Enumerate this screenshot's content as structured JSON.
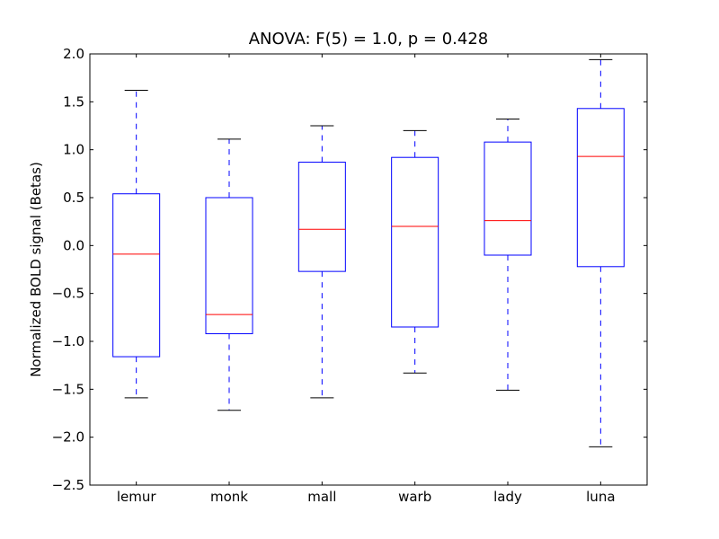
{
  "chart_data": {
    "type": "boxplot",
    "title": "ANOVA: F(5) = 1.0, p = 0.428",
    "xlabel": "",
    "ylabel": "Normalized BOLD signal (Betas)",
    "ylim": [
      -2.5,
      2.0
    ],
    "yticks": [
      "2.0",
      "1.5",
      "1.0",
      "0.5",
      "0.0",
      "−0.5",
      "−1.0",
      "−1.5",
      "−2.0",
      "−2.5"
    ],
    "ytick_values": [
      2.0,
      1.5,
      1.0,
      0.5,
      0.0,
      -0.5,
      -1.0,
      -1.5,
      -2.0,
      -2.5
    ],
    "grid": false,
    "colors": {
      "box": "#0000ff",
      "median": "#ff0000",
      "whisker": "#0000ff",
      "cap": "#000000"
    },
    "categories": [
      "lemur",
      "monk",
      "mall",
      "warb",
      "lady",
      "luna"
    ],
    "boxes": [
      {
        "label": "lemur",
        "whisker_low": -1.59,
        "q1": -1.16,
        "median": -0.09,
        "q3": 0.54,
        "whisker_high": 1.62
      },
      {
        "label": "monk",
        "whisker_low": -1.72,
        "q1": -0.92,
        "median": -0.72,
        "q3": 0.5,
        "whisker_high": 1.11
      },
      {
        "label": "mall",
        "whisker_low": -1.59,
        "q1": -0.27,
        "median": 0.17,
        "q3": 0.87,
        "whisker_high": 1.25
      },
      {
        "label": "warb",
        "whisker_low": -1.33,
        "q1": -0.85,
        "median": 0.2,
        "q3": 0.92,
        "whisker_high": 1.2
      },
      {
        "label": "lady",
        "whisker_low": -1.51,
        "q1": -0.1,
        "median": 0.26,
        "q3": 1.08,
        "whisker_high": 1.32
      },
      {
        "label": "luna",
        "whisker_low": -2.1,
        "q1": -0.22,
        "median": 0.93,
        "q3": 1.43,
        "whisker_high": 1.94
      }
    ]
  }
}
